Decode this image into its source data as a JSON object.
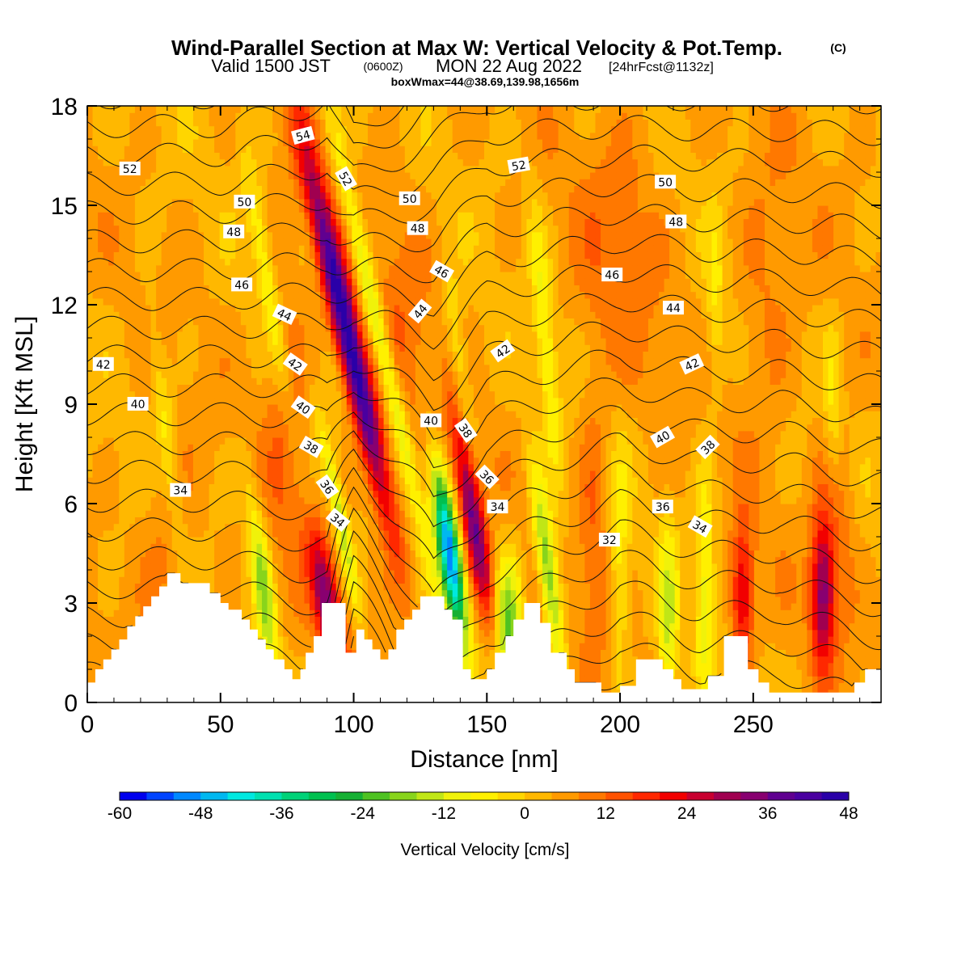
{
  "header": {
    "title": "Wind-Parallel Section at Max W: Vertical Velocity & Pot.Temp.",
    "title_mark": "(C)",
    "subtitle_valid": "Valid 1500 JST",
    "subtitle_z": "(0600Z)",
    "subtitle_date": "MON 22 Aug 2022",
    "subtitle_fcst": "[24hrFcst@1132z]",
    "box_info": "boxWmax=44@38.69,139.98,1656m"
  },
  "chart_data": {
    "type": "heatmap",
    "xlabel": "Distance [nm]",
    "ylabel": "Height [Kft MSL]",
    "xlim": [
      0,
      298
    ],
    "ylim": [
      0,
      18
    ],
    "x_ticks": [
      0,
      50,
      100,
      150,
      200,
      250
    ],
    "y_ticks": [
      0,
      3,
      6,
      9,
      12,
      15,
      18
    ],
    "field": "Vertical Velocity",
    "contour_field": "Pot.Temp.",
    "terrain_kft": [
      [
        0,
        0.6
      ],
      [
        3,
        0.6
      ],
      [
        3,
        1
      ],
      [
        6,
        1
      ],
      [
        6,
        1.3
      ],
      [
        9,
        1.3
      ],
      [
        9,
        1.6
      ],
      [
        12,
        1.6
      ],
      [
        12,
        1.9
      ],
      [
        15,
        1.9
      ],
      [
        15,
        2.3
      ],
      [
        18,
        2.3
      ],
      [
        18,
        2.6
      ],
      [
        21,
        2.6
      ],
      [
        21,
        2.9
      ],
      [
        24,
        2.9
      ],
      [
        24,
        3.2
      ],
      [
        27,
        3.2
      ],
      [
        27,
        3.5
      ],
      [
        30,
        3.5
      ],
      [
        30,
        3.9
      ],
      [
        35,
        3.9
      ],
      [
        35,
        3.6
      ],
      [
        46,
        3.6
      ],
      [
        46,
        3.3
      ],
      [
        50,
        3.3
      ],
      [
        50,
        3.0
      ],
      [
        53,
        3.0
      ],
      [
        53,
        2.8
      ],
      [
        58,
        2.8
      ],
      [
        58,
        2.5
      ],
      [
        61,
        2.5
      ],
      [
        61,
        2.2
      ],
      [
        64,
        2.2
      ],
      [
        64,
        1.9
      ],
      [
        67,
        1.9
      ],
      [
        67,
        1.6
      ],
      [
        70,
        1.6
      ],
      [
        70,
        1.3
      ],
      [
        74,
        1.3
      ],
      [
        74,
        1.0
      ],
      [
        77,
        1.0
      ],
      [
        77,
        0.7
      ],
      [
        80,
        0.7
      ],
      [
        80,
        1.0
      ],
      [
        82,
        1.0
      ],
      [
        82,
        1.5
      ],
      [
        85,
        1.5
      ],
      [
        85,
        2.0
      ],
      [
        88,
        2.0
      ],
      [
        88,
        3.0
      ],
      [
        97,
        3.0
      ],
      [
        97,
        1.5
      ],
      [
        101,
        1.5
      ],
      [
        101,
        2.2
      ],
      [
        104,
        2.2
      ],
      [
        104,
        1.9
      ],
      [
        107,
        1.9
      ],
      [
        107,
        1.6
      ],
      [
        110,
        1.6
      ],
      [
        110,
        1.3
      ],
      [
        113,
        1.3
      ],
      [
        113,
        1.6
      ],
      [
        116,
        1.6
      ],
      [
        116,
        2.2
      ],
      [
        119,
        2.2
      ],
      [
        119,
        2.5
      ],
      [
        122,
        2.5
      ],
      [
        122,
        2.8
      ],
      [
        125,
        2.8
      ],
      [
        125,
        3.2
      ],
      [
        134,
        3.2
      ],
      [
        134,
        2.8
      ],
      [
        137,
        2.8
      ],
      [
        137,
        2.5
      ],
      [
        141,
        2.5
      ],
      [
        141,
        1.0
      ],
      [
        144,
        1.0
      ],
      [
        144,
        0.7
      ],
      [
        150,
        0.7
      ],
      [
        150,
        1.0
      ],
      [
        153,
        1.0
      ],
      [
        153,
        1.5
      ],
      [
        157,
        1.5
      ],
      [
        157,
        2.0
      ],
      [
        160,
        2.0
      ],
      [
        160,
        2.5
      ],
      [
        164,
        2.5
      ],
      [
        164,
        3.0
      ],
      [
        170,
        3.0
      ],
      [
        170,
        2.4
      ],
      [
        174,
        2.4
      ],
      [
        174,
        1.5
      ],
      [
        180,
        1.5
      ],
      [
        180,
        1.0
      ],
      [
        183,
        1.0
      ],
      [
        183,
        0.6
      ],
      [
        193,
        0.6
      ],
      [
        193,
        0.3
      ],
      [
        200,
        0.3
      ],
      [
        200,
        0.5
      ],
      [
        206,
        0.5
      ],
      [
        206,
        1.3
      ],
      [
        216,
        1.3
      ],
      [
        216,
        1.0
      ],
      [
        220,
        1.0
      ],
      [
        220,
        0.7
      ],
      [
        223,
        0.7
      ],
      [
        223,
        0.4
      ],
      [
        233,
        0.4
      ],
      [
        233,
        0.8
      ],
      [
        239,
        0.8
      ],
      [
        239,
        2.0
      ],
      [
        248,
        2.0
      ],
      [
        248,
        1.0
      ],
      [
        252,
        1.0
      ],
      [
        252,
        0.6
      ],
      [
        256,
        0.6
      ],
      [
        256,
        0.3
      ],
      [
        288,
        0.3
      ],
      [
        288,
        0.6
      ],
      [
        292,
        0.6
      ],
      [
        292,
        1.0
      ],
      [
        298,
        1.0
      ]
    ],
    "updrafts": [
      {
        "x": 98,
        "y": 11,
        "strength": 46,
        "sx": 3.5,
        "sy": 4.0,
        "tilt": -2.8
      },
      {
        "x": 145,
        "y": 5.5,
        "strength": 34,
        "sx": 3.0,
        "sy": 2.2,
        "tilt": -2.0
      },
      {
        "x": 90,
        "y": 3.0,
        "strength": 30,
        "sx": 3.5,
        "sy": 1.5,
        "tilt": -2.0
      },
      {
        "x": 276,
        "y": 3.2,
        "strength": 26,
        "sx": 3.0,
        "sy": 1.5,
        "tilt": 0
      },
      {
        "x": 246,
        "y": 3.2,
        "strength": 22,
        "sx": 3.0,
        "sy": 1.5,
        "tilt": 0
      },
      {
        "x": 280,
        "y": 5.5,
        "strength": 10,
        "sx": 5.0,
        "sy": 2.5,
        "tilt": 0
      },
      {
        "x": 118,
        "y": 11,
        "strength": 6,
        "sx": 8.0,
        "sy": 3.0,
        "tilt": 0
      },
      {
        "x": 75,
        "y": 9,
        "strength": 8,
        "sx": 6.0,
        "sy": 3.5,
        "tilt": 0
      },
      {
        "x": 190,
        "y": 5.5,
        "strength": 8,
        "sx": 4.0,
        "sy": 3.0,
        "tilt": 0
      },
      {
        "x": 200,
        "y": 14,
        "strength": 6,
        "sx": 12.0,
        "sy": 3.0,
        "tilt": 0
      },
      {
        "x": 30,
        "y": 5,
        "strength": 6,
        "sx": 8.0,
        "sy": 2.0,
        "tilt": 0
      },
      {
        "x": 255,
        "y": 12,
        "strength": 6,
        "sx": 8.0,
        "sy": 3.0,
        "tilt": 0
      }
    ],
    "downdrafts": [
      {
        "x": 136,
        "y": 4.5,
        "strength": -55,
        "sx": 2.8,
        "sy": 1.8,
        "tilt": -1.8
      },
      {
        "x": 110,
        "y": 11,
        "strength": -20,
        "sx": 2.5,
        "sy": 4.5,
        "tilt": -2.8
      },
      {
        "x": 173,
        "y": 4,
        "strength": -26,
        "sx": 2.6,
        "sy": 2.0,
        "tilt": -1.5
      },
      {
        "x": 158,
        "y": 2.2,
        "strength": -24,
        "sx": 3.5,
        "sy": 1.5,
        "tilt": 0
      },
      {
        "x": 66,
        "y": 3.5,
        "strength": -22,
        "sx": 2.6,
        "sy": 2.0,
        "tilt": -1.5
      },
      {
        "x": 95,
        "y": 5.5,
        "strength": -18,
        "sx": 2.0,
        "sy": 2.0,
        "tilt": -2.5
      },
      {
        "x": 68,
        "y": 12.5,
        "strength": -12,
        "sx": 2.5,
        "sy": 3.0,
        "tilt": -2.0
      },
      {
        "x": 140,
        "y": 10,
        "strength": -10,
        "sx": 2.5,
        "sy": 2.0,
        "tilt": -1.5
      },
      {
        "x": 172,
        "y": 11,
        "strength": -12,
        "sx": 2.5,
        "sy": 3.0,
        "tilt": -1.0
      },
      {
        "x": 218,
        "y": 2.5,
        "strength": -16,
        "sx": 2.5,
        "sy": 2.0,
        "tilt": 0
      },
      {
        "x": 232,
        "y": 3.5,
        "strength": -14,
        "sx": 2.5,
        "sy": 2.5,
        "tilt": 0
      },
      {
        "x": 200,
        "y": 4,
        "strength": -10,
        "sx": 2.5,
        "sy": 2.5,
        "tilt": 0
      },
      {
        "x": 30,
        "y": 8.0,
        "strength": -10,
        "sx": 2.5,
        "sy": 2.5,
        "tilt": -1.5
      },
      {
        "x": 280,
        "y": 8.5,
        "strength": -10,
        "sx": 2.5,
        "sy": 2.0,
        "tilt": 0
      },
      {
        "x": 236,
        "y": 12,
        "strength": -8,
        "sx": 2.5,
        "sy": 2.0,
        "tilt": 0
      }
    ],
    "theta_levels": [
      31,
      32,
      33,
      34,
      35,
      36,
      37,
      38,
      39,
      40,
      41,
      42,
      43,
      44,
      45,
      46,
      47,
      48,
      49,
      50,
      51,
      52,
      53,
      54,
      55
    ],
    "theta_base": [
      [
        0,
        34.0
      ],
      [
        50,
        34.0
      ],
      [
        90,
        35.0
      ],
      [
        100,
        30.0
      ],
      [
        130,
        36.0
      ],
      [
        150,
        34.0
      ],
      [
        175,
        33.0
      ],
      [
        200,
        32.0
      ],
      [
        230,
        33.0
      ],
      [
        260,
        33.0
      ],
      [
        298,
        34.0
      ]
    ],
    "theta_rate": [
      [
        0,
        1.15
      ],
      [
        50,
        1.15
      ],
      [
        90,
        1.05
      ],
      [
        100,
        1.45
      ],
      [
        130,
        1.0
      ],
      [
        150,
        1.05
      ],
      [
        175,
        1.1
      ],
      [
        200,
        1.15
      ],
      [
        230,
        1.1
      ],
      [
        260,
        1.1
      ],
      [
        298,
        1.05
      ]
    ],
    "contour_labels": [
      {
        "text": "54",
        "x": 81,
        "y": 17.1,
        "angle": -15
      },
      {
        "text": "52",
        "x": 16,
        "y": 16.1,
        "angle": 0
      },
      {
        "text": "52",
        "x": 97,
        "y": 15.8,
        "angle": 60
      },
      {
        "text": "52",
        "x": 162,
        "y": 16.2,
        "angle": -10
      },
      {
        "text": "50",
        "x": 59,
        "y": 15.1,
        "angle": 0
      },
      {
        "text": "50",
        "x": 121,
        "y": 15.2,
        "angle": 0
      },
      {
        "text": "50",
        "x": 217,
        "y": 15.7,
        "angle": 0
      },
      {
        "text": "48",
        "x": 55,
        "y": 14.2,
        "angle": 0
      },
      {
        "text": "48",
        "x": 124,
        "y": 14.3,
        "angle": 0
      },
      {
        "text": "48",
        "x": 221,
        "y": 14.5,
        "angle": 0
      },
      {
        "text": "46",
        "x": 58,
        "y": 12.6,
        "angle": 0
      },
      {
        "text": "46",
        "x": 133,
        "y": 13.0,
        "angle": 30
      },
      {
        "text": "46",
        "x": 197,
        "y": 12.9,
        "angle": 0
      },
      {
        "text": "44",
        "x": 74,
        "y": 11.7,
        "angle": 25
      },
      {
        "text": "44",
        "x": 125,
        "y": 11.8,
        "angle": -50
      },
      {
        "text": "44",
        "x": 220,
        "y": 11.9,
        "angle": 0
      },
      {
        "text": "42",
        "x": 6,
        "y": 10.2,
        "angle": 0
      },
      {
        "text": "42",
        "x": 78,
        "y": 10.2,
        "angle": 35
      },
      {
        "text": "42",
        "x": 156,
        "y": 10.6,
        "angle": -35
      },
      {
        "text": "42",
        "x": 227,
        "y": 10.2,
        "angle": -25
      },
      {
        "text": "40",
        "x": 19,
        "y": 9.0,
        "angle": 0
      },
      {
        "text": "40",
        "x": 81,
        "y": 8.9,
        "angle": 35
      },
      {
        "text": "40",
        "x": 129,
        "y": 8.5,
        "angle": 0
      },
      {
        "text": "40",
        "x": 216,
        "y": 8.0,
        "angle": -30
      },
      {
        "text": "38",
        "x": 84,
        "y": 7.7,
        "angle": 30
      },
      {
        "text": "38",
        "x": 142,
        "y": 8.2,
        "angle": 55
      },
      {
        "text": "38",
        "x": 233,
        "y": 7.7,
        "angle": -45
      },
      {
        "text": "36",
        "x": 90,
        "y": 6.5,
        "angle": 55
      },
      {
        "text": "36",
        "x": 150,
        "y": 6.8,
        "angle": 45
      },
      {
        "text": "36",
        "x": 216,
        "y": 5.9,
        "angle": 0
      },
      {
        "text": "34",
        "x": 35,
        "y": 6.4,
        "angle": 0
      },
      {
        "text": "34",
        "x": 94,
        "y": 5.5,
        "angle": 40
      },
      {
        "text": "34",
        "x": 154,
        "y": 5.9,
        "angle": 0
      },
      {
        "text": "34",
        "x": 230,
        "y": 5.3,
        "angle": 30
      },
      {
        "text": "32",
        "x": 196,
        "y": 4.9,
        "angle": 0
      }
    ],
    "colorbar": {
      "label": "Vertical Velocity [cm/s]",
      "min": -60,
      "max": 48,
      "step": 4,
      "tick_labels": [
        "-60",
        "-48",
        "-36",
        "-24",
        "-12",
        "0",
        "12",
        "24",
        "36",
        "48"
      ],
      "colors": [
        "#0000ee",
        "#0044ff",
        "#0088ff",
        "#00b8f0",
        "#00e8e0",
        "#00e0b0",
        "#00d278",
        "#00c050",
        "#16b034",
        "#4ec222",
        "#88d41c",
        "#c0e616",
        "#f0f20a",
        "#fff000",
        "#ffd600",
        "#ffb800",
        "#ff9a00",
        "#ff7800",
        "#ff5200",
        "#ff2800",
        "#f20000",
        "#c80030",
        "#a00050",
        "#880070",
        "#600090",
        "#4a00a0",
        "#2a00a8"
      ]
    }
  }
}
